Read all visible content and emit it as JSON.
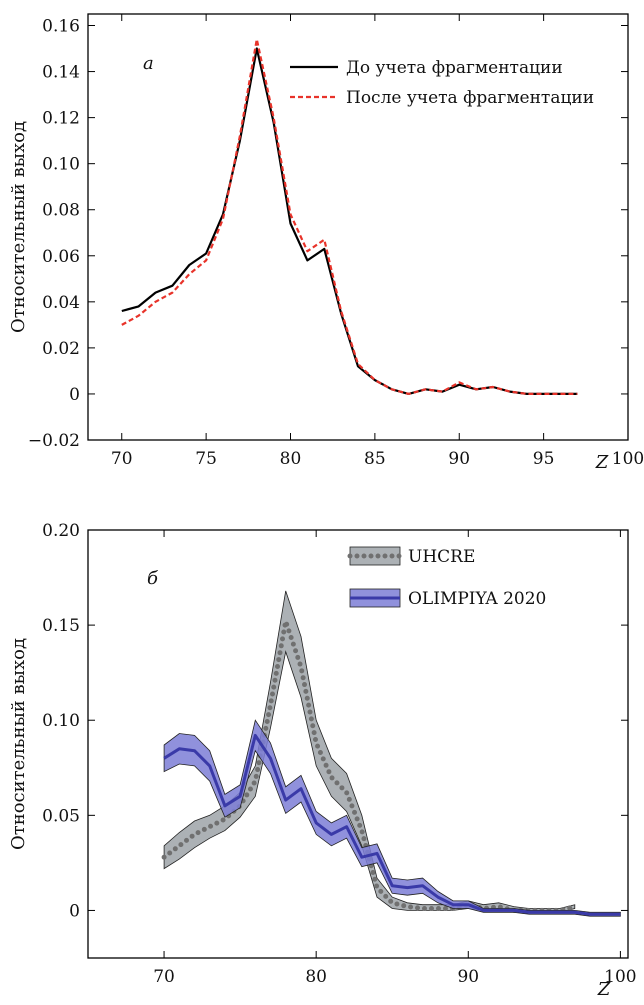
{
  "chart_data": [
    {
      "type": "line",
      "panel_label": "а",
      "xlabel": "Z",
      "ylabel": "Относительный выход",
      "xlim": [
        68,
        100
      ],
      "ylim": [
        -0.02,
        0.165
      ],
      "xticks": [
        70,
        75,
        80,
        85,
        90,
        95,
        100
      ],
      "xtick_labels": [
        "70",
        "75",
        "80",
        "85",
        "90",
        "95",
        "100"
      ],
      "yticks": [
        -0.02,
        0,
        0.02,
        0.04,
        0.06,
        0.08,
        0.1,
        0.12,
        0.14,
        0.16
      ],
      "ytick_labels": [
        "−0.02",
        "0",
        "0.02",
        "0.04",
        "0.06",
        "0.08",
        "0.10",
        "0.12",
        "0.14",
        "0.16"
      ],
      "x": [
        70,
        71,
        72,
        73,
        74,
        75,
        76,
        77,
        78,
        79,
        80,
        81,
        82,
        83,
        84,
        85,
        86,
        87,
        88,
        89,
        90,
        91,
        92,
        93,
        94,
        95,
        96,
        97
      ],
      "series": [
        {
          "name": "До учета фрагментации",
          "color": "#000000",
          "style": "solid",
          "values": [
            0.036,
            0.038,
            0.044,
            0.047,
            0.056,
            0.061,
            0.078,
            0.11,
            0.15,
            0.118,
            0.074,
            0.058,
            0.063,
            0.035,
            0.012,
            0.006,
            0.002,
            0.0,
            0.002,
            0.001,
            0.004,
            0.002,
            0.003,
            0.001,
            0.0,
            0.0,
            0.0,
            0.0
          ]
        },
        {
          "name": "После учета фрагментации",
          "color": "#e8332a",
          "style": "dashed",
          "values": [
            0.03,
            0.034,
            0.04,
            0.044,
            0.052,
            0.058,
            0.076,
            0.112,
            0.154,
            0.12,
            0.078,
            0.062,
            0.067,
            0.036,
            0.013,
            0.006,
            0.002,
            0.0,
            0.002,
            0.001,
            0.005,
            0.002,
            0.003,
            0.001,
            0.0,
            0.0,
            0.0,
            0.0
          ]
        }
      ]
    },
    {
      "type": "area",
      "panel_label": "б",
      "xlabel": "Z",
      "ylabel": "Относительный выход",
      "xlim": [
        65,
        100.5
      ],
      "ylim": [
        -0.025,
        0.2
      ],
      "xticks": [
        70,
        80,
        90,
        100
      ],
      "xtick_labels": [
        "70",
        "80",
        "90",
        "100"
      ],
      "yticks": [
        0,
        0.05,
        0.1,
        0.15,
        0.2
      ],
      "ytick_labels": [
        "0",
        "0.05",
        "0.10",
        "0.15",
        "0.20"
      ],
      "series": [
        {
          "name": "UHCRE",
          "line_color": "#707070",
          "band_color": "#9ea3a8",
          "style": "dotted",
          "x": [
            70,
            71,
            72,
            73,
            74,
            75,
            76,
            77,
            78,
            79,
            80,
            81,
            82,
            83,
            84,
            85,
            86,
            87,
            88,
            89,
            90,
            91,
            92,
            93,
            94,
            95,
            96,
            97
          ],
          "values": [
            0.028,
            0.034,
            0.04,
            0.044,
            0.048,
            0.055,
            0.068,
            0.108,
            0.152,
            0.128,
            0.088,
            0.07,
            0.062,
            0.042,
            0.012,
            0.004,
            0.002,
            0.001,
            0.001,
            0.001,
            0.003,
            0.001,
            0.002,
            0.0,
            0.0,
            0.0,
            0.0,
            0.002
          ],
          "lower": [
            0.022,
            0.027,
            0.033,
            0.038,
            0.042,
            0.049,
            0.06,
            0.096,
            0.136,
            0.112,
            0.076,
            0.06,
            0.052,
            0.034,
            0.007,
            0.001,
            0.0,
            0.0,
            0.0,
            0.0,
            0.001,
            0.0,
            0.001,
            0.0,
            -0.001,
            -0.001,
            -0.001,
            0.001
          ],
          "upper": [
            0.034,
            0.041,
            0.047,
            0.05,
            0.055,
            0.062,
            0.076,
            0.12,
            0.168,
            0.144,
            0.1,
            0.08,
            0.072,
            0.05,
            0.017,
            0.007,
            0.004,
            0.003,
            0.003,
            0.003,
            0.005,
            0.003,
            0.004,
            0.002,
            0.001,
            0.001,
            0.001,
            0.003
          ]
        },
        {
          "name": "OLIMPIYA 2020",
          "line_color": "#3a3aa8",
          "band_color": "#7c7ed6",
          "style": "solid",
          "x": [
            70,
            71,
            72,
            73,
            74,
            75,
            76,
            77,
            78,
            79,
            80,
            81,
            82,
            83,
            84,
            85,
            86,
            87,
            88,
            89,
            90,
            91,
            92,
            93,
            94,
            95,
            96,
            97,
            98,
            99,
            100
          ],
          "values": [
            0.08,
            0.085,
            0.084,
            0.076,
            0.055,
            0.06,
            0.092,
            0.08,
            0.058,
            0.064,
            0.046,
            0.04,
            0.044,
            0.028,
            0.03,
            0.013,
            0.012,
            0.013,
            0.007,
            0.003,
            0.003,
            0.0,
            0.0,
            0.0,
            -0.001,
            -0.001,
            -0.001,
            -0.001,
            -0.002,
            -0.002,
            -0.002
          ],
          "lower": [
            0.073,
            0.077,
            0.076,
            0.068,
            0.049,
            0.054,
            0.084,
            0.072,
            0.051,
            0.057,
            0.04,
            0.034,
            0.038,
            0.023,
            0.025,
            0.009,
            0.008,
            0.009,
            0.004,
            0.001,
            0.001,
            -0.001,
            -0.001,
            -0.001,
            -0.002,
            -0.002,
            -0.002,
            -0.002,
            -0.003,
            -0.003,
            -0.003
          ],
          "upper": [
            0.087,
            0.093,
            0.092,
            0.084,
            0.061,
            0.066,
            0.1,
            0.088,
            0.065,
            0.071,
            0.052,
            0.046,
            0.05,
            0.033,
            0.035,
            0.017,
            0.016,
            0.017,
            0.01,
            0.005,
            0.005,
            0.001,
            0.001,
            0.001,
            0.0,
            0.0,
            0.0,
            0.0,
            -0.001,
            -0.001,
            -0.001
          ]
        }
      ]
    }
  ]
}
